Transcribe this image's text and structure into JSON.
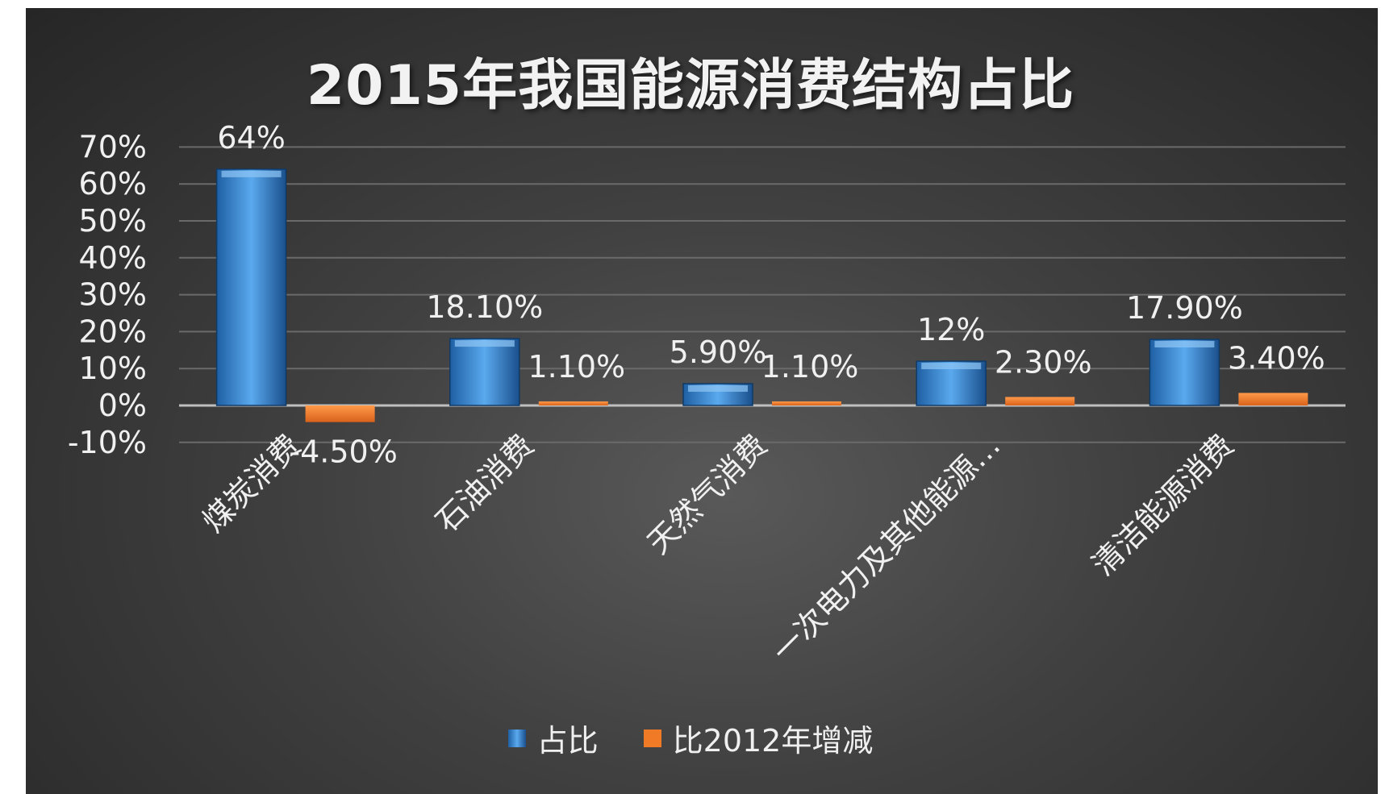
{
  "chart_data": {
    "type": "bar",
    "title": "2015年我国能源消费结构占比",
    "categories": [
      "煤炭消费",
      "石油消费",
      "天然气消费",
      "一次电力及其他能源…",
      "清洁能源消费"
    ],
    "series": [
      {
        "name": "占比",
        "values": [
          64,
          18.1,
          5.9,
          12,
          17.9
        ],
        "labels": [
          "64%",
          "18.10%",
          "5.90%",
          "12%",
          "17.90%"
        ],
        "color": "#3f8fdb"
      },
      {
        "name": "比2012年增减",
        "values": [
          -4.5,
          1.1,
          1.1,
          2.3,
          3.4
        ],
        "labels": [
          "-4.50%",
          "1.10%",
          "1.10%",
          "2.30%",
          "3.40%"
        ],
        "color": "#f07a26"
      }
    ],
    "yticks": [
      "70%",
      "60%",
      "50%",
      "40%",
      "30%",
      "20%",
      "10%",
      "0%",
      "-10%"
    ],
    "ylim": [
      -10,
      70
    ],
    "grid": true,
    "legend_position": "bottom",
    "background": "#3a3a3a"
  }
}
